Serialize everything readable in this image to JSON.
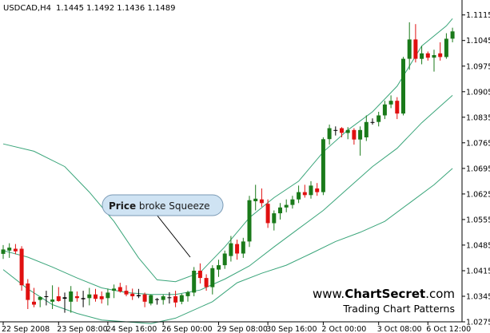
{
  "header": {
    "symbol": "USDCAD,H4",
    "ohlc": "1.1445 1.1492 1.1436 1.1489"
  },
  "annotation": {
    "bold": "Price",
    "rest": " broke Squeeze"
  },
  "watermark": {
    "site_prefix": "www.",
    "site_bold": "ChartSecret",
    "site_suffix": ".com",
    "tagline": "Trading Chart Patterns"
  },
  "colors": {
    "bull": "#1a7a1a",
    "bear": "#e01010",
    "doji": "#000000",
    "band": "#3aa57a",
    "axis": "#000000",
    "bubble_fill": "#cfe3f3",
    "bubble_stroke": "#7a9ab5"
  },
  "chart_data": {
    "type": "candlestick",
    "ylim": [
      1.0275,
      1.1145
    ],
    "y_ticks": [
      "1.1115",
      "1.1045",
      "1.0975",
      "1.0905",
      "1.0835",
      "1.0765",
      "1.0695",
      "1.0625",
      "1.0555",
      "1.0485",
      "1.0415",
      "1.0345",
      "1.0275"
    ],
    "x_ticks": [
      {
        "label": "22 Sep 2008",
        "index": 0
      },
      {
        "label": "23 Sep 08:00",
        "index": 9
      },
      {
        "label": "24 Sep 16:00",
        "index": 17
      },
      {
        "label": "26 Sep 00:00",
        "index": 26
      },
      {
        "label": "29 Sep 08:00",
        "index": 35
      },
      {
        "label": "30 Sep 16:00",
        "index": 43
      },
      {
        "label": "2 Oct 00:00",
        "index": 52
      },
      {
        "label": "3 Oct 08:00",
        "index": 61
      },
      {
        "label": "6 Oct 12:00",
        "index": 69
      }
    ],
    "candles": [
      {
        "o": 1.0461,
        "h": 1.0485,
        "l": 1.0447,
        "c": 1.0473
      },
      {
        "o": 1.047,
        "h": 1.049,
        "l": 1.045,
        "c": 1.0478
      },
      {
        "o": 1.0475,
        "h": 1.0488,
        "l": 1.046,
        "c": 1.0468
      },
      {
        "o": 1.0475,
        "h": 1.0482,
        "l": 1.036,
        "c": 1.0375
      },
      {
        "o": 1.038,
        "h": 1.0392,
        "l": 1.031,
        "c": 1.0335
      },
      {
        "o": 1.033,
        "h": 1.0368,
        "l": 1.0315,
        "c": 1.0322
      },
      {
        "o": 1.0335,
        "h": 1.0345,
        "l": 1.0315,
        "c": 1.0343
      },
      {
        "o": 1.0343,
        "h": 1.036,
        "l": 1.032,
        "c": 1.0345
      },
      {
        "o": 1.033,
        "h": 1.0375,
        "l": 1.031,
        "c": 1.0336
      },
      {
        "o": 1.0345,
        "h": 1.037,
        "l": 1.033,
        "c": 1.0332
      },
      {
        "o": 1.0338,
        "h": 1.0355,
        "l": 1.03,
        "c": 1.0342
      },
      {
        "o": 1.033,
        "h": 1.0373,
        "l": 1.03,
        "c": 1.0358
      },
      {
        "o": 1.0345,
        "h": 1.0358,
        "l": 1.033,
        "c": 1.034
      },
      {
        "o": 1.034,
        "h": 1.036,
        "l": 1.0315,
        "c": 1.0337
      },
      {
        "o": 1.034,
        "h": 1.0368,
        "l": 1.032,
        "c": 1.035
      },
      {
        "o": 1.035,
        "h": 1.0365,
        "l": 1.033,
        "c": 1.0338
      },
      {
        "o": 1.0345,
        "h": 1.0358,
        "l": 1.0325,
        "c": 1.0337
      },
      {
        "o": 1.034,
        "h": 1.0366,
        "l": 1.032,
        "c": 1.0355
      },
      {
        "o": 1.036,
        "h": 1.0377,
        "l": 1.034,
        "c": 1.0366
      },
      {
        "o": 1.037,
        "h": 1.0382,
        "l": 1.0355,
        "c": 1.0358
      },
      {
        "o": 1.036,
        "h": 1.0375,
        "l": 1.0345,
        "c": 1.035
      },
      {
        "o": 1.0352,
        "h": 1.0366,
        "l": 1.0335,
        "c": 1.0345
      },
      {
        "o": 1.0345,
        "h": 1.0365,
        "l": 1.034,
        "c": 1.0348
      },
      {
        "o": 1.035,
        "h": 1.0355,
        "l": 1.0315,
        "c": 1.033
      },
      {
        "o": 1.0325,
        "h": 1.035,
        "l": 1.032,
        "c": 1.0348
      },
      {
        "o": 1.0335,
        "h": 1.034,
        "l": 1.0322,
        "c": 1.0337
      },
      {
        "o": 1.0335,
        "h": 1.035,
        "l": 1.0322,
        "c": 1.0345
      },
      {
        "o": 1.034,
        "h": 1.0356,
        "l": 1.0325,
        "c": 1.0342
      },
      {
        "o": 1.0345,
        "h": 1.036,
        "l": 1.0315,
        "c": 1.0328
      },
      {
        "o": 1.033,
        "h": 1.0352,
        "l": 1.0323,
        "c": 1.0348
      },
      {
        "o": 1.0345,
        "h": 1.036,
        "l": 1.033,
        "c": 1.0356
      },
      {
        "o": 1.0355,
        "h": 1.0425,
        "l": 1.0345,
        "c": 1.0415
      },
      {
        "o": 1.0415,
        "h": 1.0435,
        "l": 1.038,
        "c": 1.0395
      },
      {
        "o": 1.0395,
        "h": 1.0405,
        "l": 1.036,
        "c": 1.037
      },
      {
        "o": 1.037,
        "h": 1.043,
        "l": 1.035,
        "c": 1.0422
      },
      {
        "o": 1.0418,
        "h": 1.0445,
        "l": 1.0398,
        "c": 1.043
      },
      {
        "o": 1.043,
        "h": 1.047,
        "l": 1.042,
        "c": 1.0462
      },
      {
        "o": 1.0455,
        "h": 1.051,
        "l": 1.044,
        "c": 1.049
      },
      {
        "o": 1.0488,
        "h": 1.05,
        "l": 1.0445,
        "c": 1.0462
      },
      {
        "o": 1.0462,
        "h": 1.0505,
        "l": 1.045,
        "c": 1.0495
      },
      {
        "o": 1.0495,
        "h": 1.062,
        "l": 1.048,
        "c": 1.0608
      },
      {
        "o": 1.0605,
        "h": 1.065,
        "l": 1.058,
        "c": 1.0612
      },
      {
        "o": 1.061,
        "h": 1.064,
        "l": 1.059,
        "c": 1.06
      },
      {
        "o": 1.0598,
        "h": 1.061,
        "l": 1.0532,
        "c": 1.0545
      },
      {
        "o": 1.0545,
        "h": 1.058,
        "l": 1.0525,
        "c": 1.0572
      },
      {
        "o": 1.0572,
        "h": 1.06,
        "l": 1.0555,
        "c": 1.0588
      },
      {
        "o": 1.0588,
        "h": 1.061,
        "l": 1.0575,
        "c": 1.0595
      },
      {
        "o": 1.0595,
        "h": 1.062,
        "l": 1.0585,
        "c": 1.061
      },
      {
        "o": 1.061,
        "h": 1.0648,
        "l": 1.06,
        "c": 1.063
      },
      {
        "o": 1.063,
        "h": 1.065,
        "l": 1.0615,
        "c": 1.0622
      },
      {
        "o": 1.0622,
        "h": 1.066,
        "l": 1.0612,
        "c": 1.0648
      },
      {
        "o": 1.064,
        "h": 1.0655,
        "l": 1.062,
        "c": 1.063
      },
      {
        "o": 1.063,
        "h": 1.078,
        "l": 1.0622,
        "c": 1.0775
      },
      {
        "o": 1.0775,
        "h": 1.0815,
        "l": 1.076,
        "c": 1.0805
      },
      {
        "o": 1.08,
        "h": 1.081,
        "l": 1.0785,
        "c": 1.08
      },
      {
        "o": 1.0805,
        "h": 1.0808,
        "l": 1.078,
        "c": 1.0792
      },
      {
        "o": 1.0792,
        "h": 1.0808,
        "l": 1.0775,
        "c": 1.08
      },
      {
        "o": 1.08,
        "h": 1.0805,
        "l": 1.076,
        "c": 1.0774
      },
      {
        "o": 1.0774,
        "h": 1.081,
        "l": 1.073,
        "c": 1.08
      },
      {
        "o": 1.078,
        "h": 1.084,
        "l": 1.077,
        "c": 1.0822
      },
      {
        "o": 1.0822,
        "h": 1.0832,
        "l": 1.0815,
        "c": 1.0822
      },
      {
        "o": 1.0822,
        "h": 1.085,
        "l": 1.081,
        "c": 1.084
      },
      {
        "o": 1.084,
        "h": 1.088,
        "l": 1.083,
        "c": 1.087
      },
      {
        "o": 1.087,
        "h": 1.0895,
        "l": 1.086,
        "c": 1.088
      },
      {
        "o": 1.088,
        "h": 1.089,
        "l": 1.083,
        "c": 1.0845
      },
      {
        "o": 1.0845,
        "h": 1.1,
        "l": 1.084,
        "c": 1.0995
      },
      {
        "o": 1.0995,
        "h": 1.1095,
        "l": 1.0965,
        "c": 1.1048
      },
      {
        "o": 1.1048,
        "h": 1.109,
        "l": 1.0985,
        "c": 1.0995
      },
      {
        "o": 1.0995,
        "h": 1.103,
        "l": 1.098,
        "c": 1.101
      },
      {
        "o": 1.101,
        "h": 1.1015,
        "l": 1.099,
        "c": 1.0998
      },
      {
        "o": 1.0998,
        "h": 1.102,
        "l": 1.096,
        "c": 1.1005
      },
      {
        "o": 1.101,
        "h": 1.104,
        "l": 1.099,
        "c": 1.1
      },
      {
        "o": 1.1,
        "h": 1.1065,
        "l": 1.0995,
        "c": 1.105
      },
      {
        "o": 1.105,
        "h": 1.108,
        "l": 1.104,
        "c": 1.107
      }
    ],
    "bollinger": {
      "upper": [
        [
          0,
          1.0762
        ],
        [
          5,
          1.0742
        ],
        [
          10,
          1.07
        ],
        [
          14,
          1.063
        ],
        [
          18,
          1.055
        ],
        [
          22,
          1.045
        ],
        [
          25,
          1.039
        ],
        [
          28,
          1.0385
        ],
        [
          32,
          1.041
        ],
        [
          36,
          1.048
        ],
        [
          40,
          1.056
        ],
        [
          44,
          1.0615
        ],
        [
          48,
          1.066
        ],
        [
          52,
          1.074
        ],
        [
          56,
          1.08
        ],
        [
          60,
          1.085
        ],
        [
          64,
          1.092
        ],
        [
          68,
          1.103
        ],
        [
          72,
          1.1085
        ],
        [
          73,
          1.1105
        ]
      ],
      "middle": [
        [
          0,
          1.047
        ],
        [
          4,
          1.0452
        ],
        [
          8,
          1.0425
        ],
        [
          12,
          1.0395
        ],
        [
          16,
          1.0368
        ],
        [
          20,
          1.0355
        ],
        [
          24,
          1.035
        ],
        [
          28,
          1.035
        ],
        [
          32,
          1.0362
        ],
        [
          36,
          1.0392
        ],
        [
          40,
          1.0428
        ],
        [
          44,
          1.048
        ],
        [
          48,
          1.053
        ],
        [
          52,
          1.058
        ],
        [
          56,
          1.064
        ],
        [
          60,
          1.07
        ],
        [
          64,
          1.075
        ],
        [
          68,
          1.082
        ],
        [
          72,
          1.088
        ],
        [
          73,
          1.0895
        ]
      ],
      "lower": [
        [
          0,
          1.0418
        ],
        [
          4,
          1.0365
        ],
        [
          8,
          1.0322
        ],
        [
          12,
          1.0298
        ],
        [
          16,
          1.028
        ],
        [
          20,
          1.0275
        ],
        [
          24,
          1.027
        ],
        [
          28,
          1.0285
        ],
        [
          30,
          1.03
        ],
        [
          34,
          1.033
        ],
        [
          38,
          1.0382
        ],
        [
          42,
          1.0408
        ],
        [
          46,
          1.043
        ],
        [
          50,
          1.0462
        ],
        [
          54,
          1.0495
        ],
        [
          58,
          1.052
        ],
        [
          62,
          1.055
        ],
        [
          66,
          1.06
        ],
        [
          70,
          1.065
        ],
        [
          73,
          1.0695
        ]
      ]
    }
  }
}
